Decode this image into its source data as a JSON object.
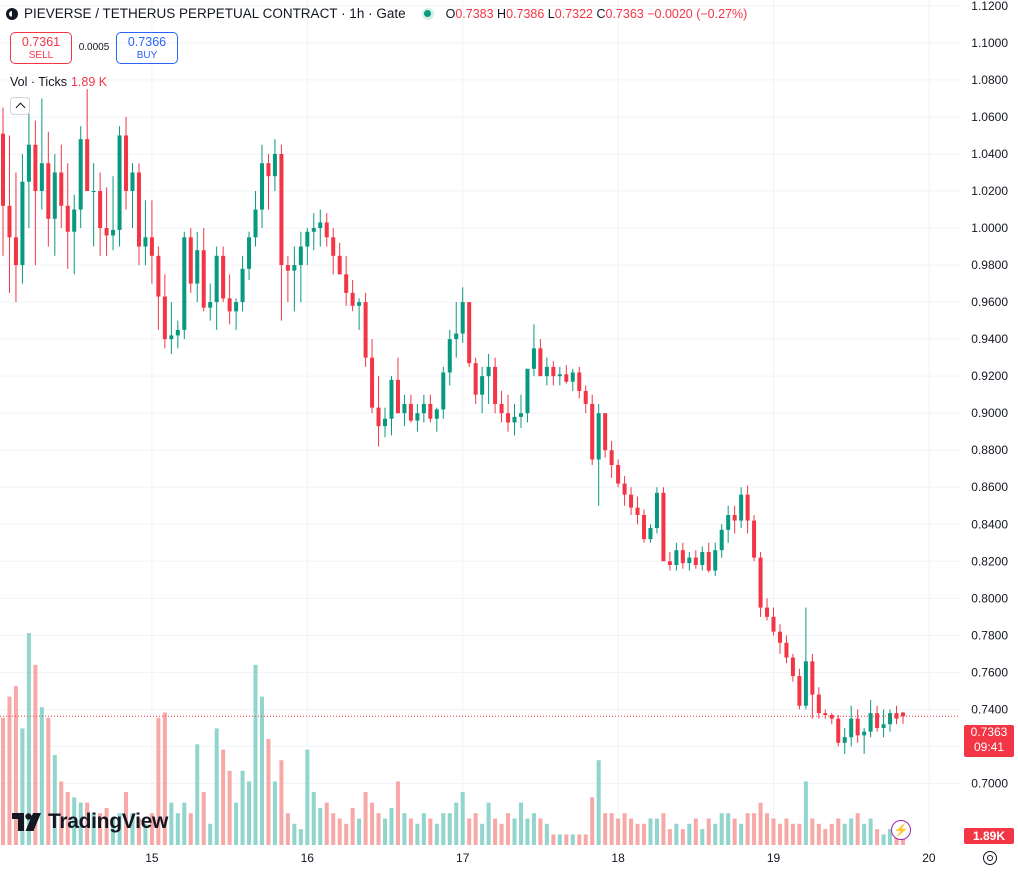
{
  "header": {
    "title": "PIEVERSE / TETHERUS PERPETUAL CONTRACT · 1h · Gate",
    "o_label": "O",
    "o_value": "0.7383",
    "h_label": "H",
    "h_value": "0.7386",
    "l_label": "L",
    "l_value": "0.7322",
    "c_label": "C",
    "c_value": "0.7363",
    "change": "−0.0020 (−0.27%)"
  },
  "trade": {
    "sell_price": "0.7361",
    "sell_label": "SELL",
    "spread": "0.0005",
    "buy_price": "0.7366",
    "buy_label": "BUY"
  },
  "volume_legend": {
    "label": "Vol · Ticks",
    "value": "1.89 K"
  },
  "logo_text": "TradingView",
  "last_price": {
    "price": "0.7363",
    "countdown": "09:41"
  },
  "volume_tag": "1.89K",
  "colors": {
    "up": "#089981",
    "down": "#f23645",
    "vol_up": "#91d5cc",
    "vol_down": "#f7a9a7",
    "grid": "#f0f3fa"
  },
  "icons": [
    "symbol-logo-icon",
    "market-status-icon",
    "collapse-chevron-icon",
    "tradingview-logo-icon",
    "lightning-icon",
    "settings-gear-icon"
  ],
  "chart_data": {
    "type": "candlestick",
    "title": "PIEVERSE / TETHERUS PERPETUAL CONTRACT · 1h · Gate",
    "y_ticks": [
      "1.1200",
      "1.1000",
      "1.0800",
      "1.0600",
      "1.0400",
      "1.0200",
      "1.0000",
      "0.9800",
      "0.9600",
      "0.9400",
      "0.9200",
      "0.9000",
      "0.8800",
      "0.8600",
      "0.8400",
      "0.8200",
      "0.8000",
      "0.7800",
      "0.7600",
      "0.7400",
      "0.7200",
      "0.7000"
    ],
    "x_ticks": [
      "15",
      "16",
      "17",
      "18",
      "19",
      "20"
    ],
    "ylim": [
      0.69,
      1.121
    ],
    "current_price": 0.7363,
    "grid": true,
    "candles": [
      [
        1.051,
        1.065,
        0.985,
        1.012,
        120
      ],
      [
        1.012,
        1.05,
        0.965,
        0.995,
        140
      ],
      [
        0.995,
        1.03,
        0.96,
        0.98,
        150
      ],
      [
        0.98,
        1.04,
        0.97,
        1.025,
        110
      ],
      [
        1.025,
        1.07,
        1.0,
        1.045,
        200
      ],
      [
        1.045,
        1.058,
        0.98,
        1.02,
        170
      ],
      [
        1.02,
        1.07,
        1.01,
        1.035,
        130
      ],
      [
        1.035,
        1.052,
        0.99,
        1.005,
        120
      ],
      [
        1.005,
        1.04,
        0.985,
        1.03,
        85
      ],
      [
        1.03,
        1.045,
        1.0,
        1.012,
        60
      ],
      [
        1.012,
        1.035,
        0.978,
        0.998,
        50
      ],
      [
        0.998,
        1.018,
        0.975,
        1.01,
        45
      ],
      [
        1.01,
        1.055,
        1.0,
        1.048,
        40
      ],
      [
        1.048,
        1.075,
        1.02,
        1.02,
        40
      ],
      [
        1.02,
        1.035,
        0.99,
        1.02,
        30
      ],
      [
        1.02,
        1.03,
        0.985,
        1.0,
        30
      ],
      [
        1.0,
        1.022,
        0.985,
        0.996,
        35
      ],
      [
        0.996,
        1.028,
        0.988,
        0.999,
        25
      ],
      [
        0.999,
        1.055,
        0.99,
        1.05,
        30
      ],
      [
        1.05,
        1.06,
        1.01,
        1.02,
        50
      ],
      [
        1.02,
        1.035,
        1.0,
        1.03,
        30
      ],
      [
        1.03,
        1.035,
        0.98,
        0.99,
        25
      ],
      [
        0.99,
        1.015,
        0.98,
        0.995,
        20
      ],
      [
        0.995,
        1.015,
        0.97,
        0.985,
        30
      ],
      [
        0.985,
        0.99,
        0.945,
        0.963,
        120
      ],
      [
        0.963,
        0.975,
        0.935,
        0.94,
        125
      ],
      [
        0.94,
        0.96,
        0.932,
        0.942,
        40
      ],
      [
        0.942,
        0.95,
        0.935,
        0.945,
        30
      ],
      [
        0.945,
        0.998,
        0.94,
        0.995,
        40
      ],
      [
        0.995,
        1.0,
        0.965,
        0.97,
        30
      ],
      [
        0.97,
        0.998,
        0.96,
        0.988,
        95
      ],
      [
        0.988,
        1.0,
        0.955,
        0.957,
        50
      ],
      [
        0.957,
        0.97,
        0.95,
        0.96,
        20
      ],
      [
        0.96,
        0.99,
        0.945,
        0.985,
        110
      ],
      [
        0.985,
        0.99,
        0.96,
        0.962,
        90
      ],
      [
        0.962,
        0.975,
        0.948,
        0.955,
        70
      ],
      [
        0.955,
        0.962,
        0.945,
        0.96,
        40
      ],
      [
        0.96,
        0.985,
        0.955,
        0.978,
        70
      ],
      [
        0.978,
        0.998,
        0.972,
        0.995,
        60
      ],
      [
        0.995,
        1.02,
        0.99,
        1.01,
        170
      ],
      [
        1.01,
        1.045,
        1.0,
        1.035,
        140
      ],
      [
        1.035,
        1.04,
        1.01,
        1.028,
        100
      ],
      [
        1.028,
        1.048,
        1.02,
        1.04,
        60
      ],
      [
        1.04,
        1.045,
        0.95,
        0.98,
        80
      ],
      [
        0.98,
        0.985,
        0.96,
        0.977,
        30
      ],
      [
        0.977,
        0.99,
        0.955,
        0.98,
        20
      ],
      [
        0.98,
        0.998,
        0.96,
        0.99,
        15
      ],
      [
        0.99,
        1.0,
        0.98,
        0.998,
        90
      ],
      [
        0.998,
        1.008,
        0.988,
        1.0,
        50
      ],
      [
        1.0,
        1.01,
        0.99,
        1.003,
        35
      ],
      [
        1.003,
        1.008,
        0.99,
        0.995,
        40
      ],
      [
        0.995,
        1.0,
        0.975,
        0.985,
        30
      ],
      [
        0.985,
        0.992,
        0.975,
        0.975,
        25
      ],
      [
        0.975,
        0.985,
        0.958,
        0.965,
        20
      ],
      [
        0.965,
        0.972,
        0.955,
        0.958,
        35
      ],
      [
        0.958,
        0.962,
        0.945,
        0.96,
        25
      ],
      [
        0.96,
        0.965,
        0.925,
        0.93,
        50
      ],
      [
        0.93,
        0.94,
        0.9,
        0.903,
        40
      ],
      [
        0.903,
        0.92,
        0.882,
        0.893,
        30
      ],
      [
        0.893,
        0.903,
        0.887,
        0.897,
        25
      ],
      [
        0.897,
        0.92,
        0.888,
        0.918,
        35
      ],
      [
        0.918,
        0.93,
        0.9,
        0.9,
        60
      ],
      [
        0.9,
        0.91,
        0.893,
        0.905,
        30
      ],
      [
        0.905,
        0.91,
        0.895,
        0.896,
        25
      ],
      [
        0.896,
        0.905,
        0.89,
        0.9,
        20
      ],
      [
        0.9,
        0.91,
        0.895,
        0.905,
        30
      ],
      [
        0.905,
        0.91,
        0.895,
        0.897,
        25
      ],
      [
        0.897,
        0.903,
        0.89,
        0.902,
        20
      ],
      [
        0.902,
        0.925,
        0.897,
        0.922,
        30
      ],
      [
        0.922,
        0.945,
        0.915,
        0.94,
        30
      ],
      [
        0.94,
        0.96,
        0.93,
        0.943,
        40
      ],
      [
        0.943,
        0.968,
        0.938,
        0.96,
        50
      ],
      [
        0.96,
        0.96,
        0.925,
        0.927,
        25
      ],
      [
        0.927,
        0.93,
        0.905,
        0.91,
        30
      ],
      [
        0.91,
        0.925,
        0.9,
        0.92,
        20
      ],
      [
        0.92,
        0.932,
        0.905,
        0.925,
        40
      ],
      [
        0.925,
        0.93,
        0.9,
        0.905,
        25
      ],
      [
        0.905,
        0.912,
        0.895,
        0.9,
        20
      ],
      [
        0.9,
        0.91,
        0.89,
        0.895,
        30
      ],
      [
        0.895,
        0.905,
        0.888,
        0.898,
        25
      ],
      [
        0.898,
        0.91,
        0.892,
        0.9,
        40
      ],
      [
        0.9,
        0.92,
        0.895,
        0.924,
        25
      ],
      [
        0.924,
        0.948,
        0.92,
        0.935,
        30
      ],
      [
        0.935,
        0.94,
        0.92,
        0.92,
        25
      ],
      [
        0.92,
        0.93,
        0.915,
        0.925,
        20
      ],
      [
        0.925,
        0.928,
        0.915,
        0.92,
        10
      ],
      [
        0.92,
        0.925,
        0.915,
        0.921,
        10
      ],
      [
        0.921,
        0.926,
        0.916,
        0.917,
        10
      ],
      [
        0.917,
        0.924,
        0.912,
        0.922,
        10
      ],
      [
        0.922,
        0.925,
        0.908,
        0.912,
        10
      ],
      [
        0.912,
        0.915,
        0.9,
        0.905,
        10
      ],
      [
        0.905,
        0.91,
        0.872,
        0.875,
        45
      ],
      [
        0.875,
        0.905,
        0.85,
        0.9,
        80
      ],
      [
        0.9,
        0.9,
        0.876,
        0.88,
        30
      ],
      [
        0.88,
        0.885,
        0.865,
        0.872,
        30
      ],
      [
        0.872,
        0.875,
        0.86,
        0.862,
        25
      ],
      [
        0.862,
        0.866,
        0.85,
        0.856,
        30
      ],
      [
        0.856,
        0.86,
        0.845,
        0.849,
        25
      ],
      [
        0.849,
        0.855,
        0.84,
        0.845,
        20
      ],
      [
        0.845,
        0.848,
        0.83,
        0.832,
        20
      ],
      [
        0.832,
        0.84,
        0.83,
        0.838,
        25
      ],
      [
        0.838,
        0.86,
        0.835,
        0.857,
        25
      ],
      [
        0.857,
        0.86,
        0.82,
        0.82,
        30
      ],
      [
        0.82,
        0.825,
        0.815,
        0.818,
        15
      ],
      [
        0.818,
        0.83,
        0.815,
        0.826,
        20
      ],
      [
        0.826,
        0.83,
        0.816,
        0.819,
        15
      ],
      [
        0.819,
        0.825,
        0.815,
        0.822,
        20
      ],
      [
        0.822,
        0.826,
        0.816,
        0.818,
        25
      ],
      [
        0.818,
        0.828,
        0.815,
        0.825,
        15
      ],
      [
        0.825,
        0.83,
        0.814,
        0.815,
        25
      ],
      [
        0.815,
        0.83,
        0.812,
        0.826,
        20
      ],
      [
        0.826,
        0.84,
        0.822,
        0.837,
        30
      ],
      [
        0.837,
        0.85,
        0.83,
        0.845,
        30
      ],
      [
        0.845,
        0.85,
        0.835,
        0.842,
        25
      ],
      [
        0.842,
        0.86,
        0.838,
        0.856,
        20
      ],
      [
        0.856,
        0.861,
        0.835,
        0.842,
        30
      ],
      [
        0.842,
        0.845,
        0.82,
        0.822,
        30
      ],
      [
        0.822,
        0.825,
        0.79,
        0.795,
        40
      ],
      [
        0.795,
        0.8,
        0.788,
        0.79,
        30
      ],
      [
        0.79,
        0.795,
        0.78,
        0.782,
        25
      ],
      [
        0.782,
        0.786,
        0.77,
        0.776,
        20
      ],
      [
        0.776,
        0.78,
        0.765,
        0.768,
        25
      ],
      [
        0.768,
        0.77,
        0.755,
        0.758,
        20
      ],
      [
        0.758,
        0.762,
        0.74,
        0.742,
        20
      ],
      [
        0.742,
        0.795,
        0.74,
        0.766,
        60
      ],
      [
        0.766,
        0.77,
        0.735,
        0.748,
        25
      ],
      [
        0.748,
        0.752,
        0.735,
        0.738,
        20
      ],
      [
        0.738,
        0.74,
        0.735,
        0.737,
        15
      ],
      [
        0.737,
        0.738,
        0.732,
        0.735,
        20
      ],
      [
        0.735,
        0.737,
        0.72,
        0.722,
        25
      ],
      [
        0.722,
        0.73,
        0.716,
        0.725,
        20
      ],
      [
        0.725,
        0.742,
        0.72,
        0.735,
        25
      ],
      [
        0.735,
        0.74,
        0.722,
        0.726,
        30
      ],
      [
        0.726,
        0.73,
        0.716,
        0.728,
        20
      ],
      [
        0.728,
        0.745,
        0.725,
        0.738,
        25
      ],
      [
        0.738,
        0.742,
        0.728,
        0.73,
        15
      ],
      [
        0.73,
        0.74,
        0.725,
        0.732,
        10
      ],
      [
        0.732,
        0.74,
        0.728,
        0.738,
        15
      ],
      [
        0.738,
        0.742,
        0.732,
        0.735,
        20
      ],
      [
        0.7383,
        0.7386,
        0.7322,
        0.7363,
        15
      ]
    ]
  }
}
